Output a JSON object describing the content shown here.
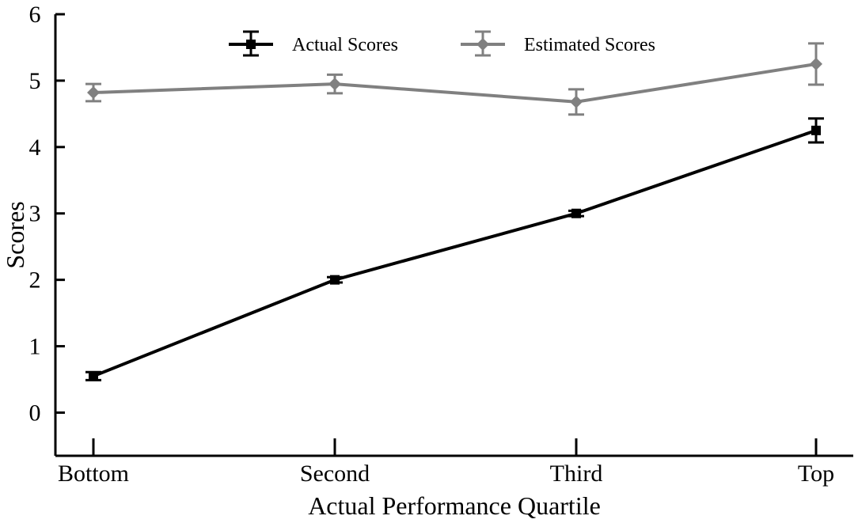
{
  "chart_data": {
    "type": "line",
    "title": "",
    "xlabel": "Actual Performance Quartile",
    "ylabel": "Scores",
    "categories": [
      "Bottom",
      "Second",
      "Third",
      "Top"
    ],
    "ylim": [
      -0.65,
      6
    ],
    "yticks": [
      0,
      1,
      2,
      3,
      4,
      5,
      6
    ],
    "grid": false,
    "legend_position": "top-center",
    "series": [
      {
        "name": "Actual Scores",
        "marker": "square",
        "color": "#000000",
        "values": [
          0.55,
          2.0,
          3.0,
          4.25
        ],
        "error": [
          0.06,
          0.04,
          0.04,
          0.18
        ]
      },
      {
        "name": "Estimated Scores",
        "marker": "diamond",
        "color": "#808080",
        "values": [
          4.82,
          4.95,
          4.68,
          5.25
        ],
        "error": [
          0.13,
          0.14,
          0.19,
          0.31
        ]
      }
    ]
  }
}
